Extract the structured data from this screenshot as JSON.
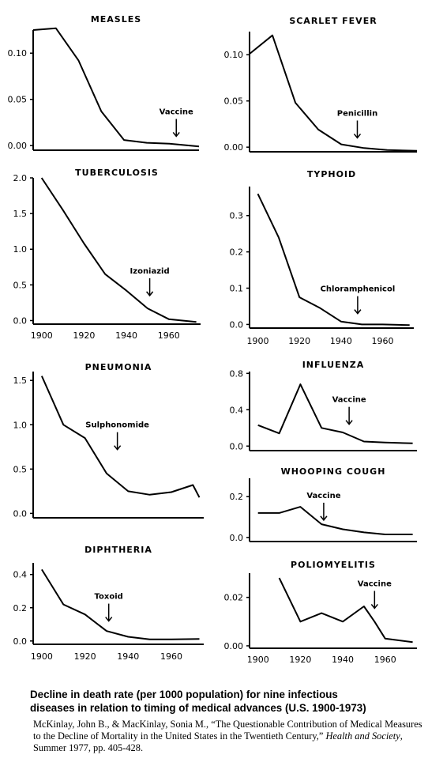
{
  "chart_data": [
    {
      "type": "line",
      "title": "MEASLES",
      "x": [
        1900,
        1910,
        1920,
        1930,
        1940,
        1950,
        1960,
        1973
      ],
      "values": [
        0.125,
        0.127,
        0.092,
        0.037,
        0.006,
        0.003,
        0.002,
        -0.001
      ],
      "xlim": [
        1900,
        1973
      ],
      "ylim": [
        -0.005,
        0.125
      ],
      "yticks": [
        "0.10",
        "0.05",
        "0.00"
      ],
      "xticks": [],
      "annotation": {
        "label": "Vaccine",
        "x": 1963,
        "y": 0.01
      }
    },
    {
      "type": "line",
      "title": "SCARLET FEVER",
      "x": [
        1900,
        1910,
        1920,
        1930,
        1940,
        1950,
        1960,
        1973
      ],
      "values": [
        0.101,
        0.121,
        0.048,
        0.019,
        0.003,
        -0.001,
        -0.003,
        -0.004
      ],
      "xlim": [
        1900,
        1973
      ],
      "ylim": [
        -0.005,
        0.125
      ],
      "yticks": [
        "0.10",
        "0.05",
        "0.00"
      ],
      "xticks": [],
      "annotation": {
        "label": "Penicillin",
        "x": 1947,
        "y": 0.01
      }
    },
    {
      "type": "line",
      "title": "TUBERCULOSIS",
      "x": [
        1900,
        1910,
        1920,
        1930,
        1940,
        1950,
        1960,
        1973
      ],
      "values": [
        2.0,
        1.55,
        1.08,
        0.65,
        0.42,
        0.17,
        0.02,
        -0.02
      ],
      "xlim": [
        1896,
        1975
      ],
      "ylim": [
        -0.05,
        2.0
      ],
      "yticks": [
        "2.0",
        "1.5",
        "1.0",
        "0.5",
        "0.0"
      ],
      "xticks": [
        "1900",
        "1920",
        "1940",
        "1960"
      ],
      "annotation": {
        "label": "Izoniazid",
        "x": 1951,
        "y": 0.35
      }
    },
    {
      "type": "line",
      "title": "TYPHOID",
      "x": [
        1900,
        1910,
        1920,
        1930,
        1940,
        1950,
        1960,
        1973
      ],
      "values": [
        0.36,
        0.24,
        0.075,
        0.045,
        0.008,
        0.0,
        0.0,
        -0.002
      ],
      "xlim": [
        1896,
        1975
      ],
      "ylim": [
        -0.01,
        0.38
      ],
      "yticks": [
        "0.3",
        "0.2",
        "0.1",
        "0.0"
      ],
      "xticks": [
        "1900",
        "1920",
        "1940",
        "1960"
      ],
      "annotation": {
        "label": "Chloramphenicol",
        "x": 1948,
        "y": 0.03
      }
    },
    {
      "type": "line",
      "title": "PNEUMONIA",
      "x": [
        1900,
        1910,
        1920,
        1930,
        1940,
        1950,
        1960,
        1970,
        1973
      ],
      "values": [
        1.55,
        1.0,
        0.85,
        0.45,
        0.25,
        0.21,
        0.24,
        0.32,
        0.18
      ],
      "xlim": [
        1896,
        1975
      ],
      "ylim": [
        -0.05,
        1.6
      ],
      "yticks": [
        "1.5",
        "1.0",
        "0.5",
        "0.0"
      ],
      "xticks": [],
      "annotation": {
        "label": "Sulphonomide",
        "x": 1935,
        "y": 0.72
      }
    },
    {
      "type": "line",
      "title": "INFLUENZA",
      "x": [
        1900,
        1910,
        1920,
        1930,
        1940,
        1950,
        1960,
        1973
      ],
      "values": [
        0.23,
        0.14,
        0.68,
        0.2,
        0.15,
        0.05,
        0.04,
        0.03
      ],
      "xlim": [
        1896,
        1975
      ],
      "ylim": [
        -0.05,
        0.82
      ],
      "yticks": [
        "0.8",
        "0.4",
        "0.0"
      ],
      "xticks": [],
      "annotation": {
        "label": "Vaccine",
        "x": 1943,
        "y": 0.24
      }
    },
    {
      "type": "line",
      "title": "WHOOPING COUGH",
      "x": [
        1900,
        1910,
        1920,
        1930,
        1940,
        1950,
        1960,
        1973
      ],
      "values": [
        0.12,
        0.12,
        0.15,
        0.065,
        0.04,
        0.025,
        0.015,
        0.015
      ],
      "xlim": [
        1896,
        1975
      ],
      "ylim": [
        -0.02,
        0.29
      ],
      "yticks": [
        "0.2",
        "0.0"
      ],
      "xticks": [],
      "annotation": {
        "label": "Vaccine",
        "x": 1931,
        "y": 0.085
      }
    },
    {
      "type": "line",
      "title": "DIPHTHERIA",
      "x": [
        1900,
        1910,
        1920,
        1930,
        1940,
        1950,
        1960,
        1973
      ],
      "values": [
        0.43,
        0.22,
        0.16,
        0.06,
        0.025,
        0.01,
        0.01,
        0.012
      ],
      "xlim": [
        1896,
        1975
      ],
      "ylim": [
        -0.02,
        0.47
      ],
      "yticks": [
        "0.4",
        "0.2",
        "0.0"
      ],
      "xticks": [
        "1900",
        "1920",
        "1940",
        "1960"
      ],
      "annotation": {
        "label": "Toxoid",
        "x": 1931,
        "y": 0.12
      }
    },
    {
      "type": "line",
      "title": "POLIOMYELITIS",
      "x": [
        1910,
        1920,
        1930,
        1940,
        1950,
        1955,
        1960,
        1973
      ],
      "values": [
        0.028,
        0.01,
        0.0135,
        0.01,
        0.0163,
        0.01,
        0.003,
        0.0015
      ],
      "xlim": [
        1896,
        1975
      ],
      "ylim": [
        -0.001,
        0.03
      ],
      "yticks": [
        "0.02",
        "0.00"
      ],
      "xticks": [
        "1900",
        "1920",
        "1940",
        "1960"
      ],
      "annotation": {
        "label": "Vaccine",
        "x": 1955,
        "y": 0.0155
      }
    }
  ],
  "caption": {
    "line1": "Decline in death rate (per 1000 population) for nine infectious",
    "line2": "diseases in relation to timing of medical advances (U.S. 1900-1973)"
  },
  "citation": {
    "before": "McKinlay, John B., & MacKinlay, Sonia M., “The Questionable Contribution of Medical Measures to the Decline of Mortality in the United States in the Twentieth Century,” ",
    "journal": "Health and Society",
    "after": ", Summer 1977, pp. 405-428."
  }
}
